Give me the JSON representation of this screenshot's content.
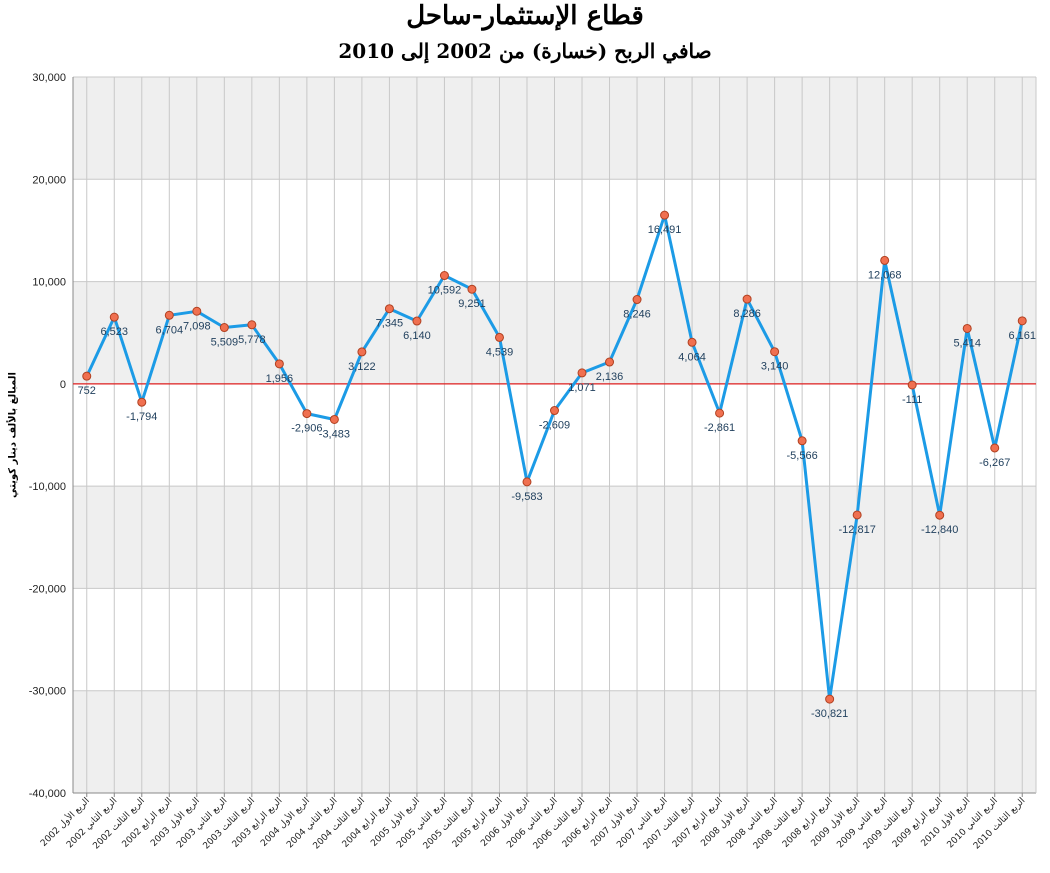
{
  "chart_data": {
    "type": "line",
    "title": "قطاع الإستثمار-ساحل",
    "subtitle": "صافي الربح (خسارة) من 2002 إلى 2010",
    "ylabel": "المبالغ بالألف دينار كويتي",
    "ylim": [
      -40000,
      30000
    ],
    "yticks": [
      "30,000",
      "20,000",
      "10,000",
      "0",
      "-10,000",
      "-20,000",
      "-30,000",
      "-40,000"
    ],
    "ytick_values": [
      30000,
      20000,
      10000,
      0,
      -10000,
      -20000,
      -30000,
      -40000
    ],
    "grid": true,
    "zero_line": true,
    "colors": {
      "line": "#1c9be6",
      "marker": "#f07050",
      "marker_edge": "#b04020",
      "zero_line": "#e02020",
      "band": "#efefef",
      "grid": "#c8c8c8",
      "label": "#23425f"
    },
    "categories": [
      "الربع الأول 2002",
      "الربع الثاني 2002",
      "الربع الثالث 2002",
      "الربع الرابع 2002",
      "الربع الأول 2003",
      "الربع الثاني 2003",
      "الربع الثالث 2003",
      "الربع الرابع 2003",
      "الربع الأول 2004",
      "الربع الثاني 2004",
      "الربع الثالث 2004",
      "الربع الرابع 2004",
      "الربع الأول 2005",
      "الربع الثاني 2005",
      "الربع الثالث 2005",
      "الربع الرابع 2005",
      "الربع الأول 2006",
      "الربع الثاني 2006",
      "الربع الثالث 2006",
      "الربع الرابع 2006",
      "الربع الأول 2007",
      "الربع الثاني 2007",
      "الربع الثالث 2007",
      "الربع الرابع 2007",
      "الربع الأول 2008",
      "الربع الثاني 2008",
      "الربع الثالث 2008",
      "الربع الرابع 2008",
      "الربع الأول 2009",
      "الربع الثاني 2009",
      "الربع الثالث 2009",
      "الربع الرابع 2009",
      "الربع الأول 2010",
      "الربع الثاني 2010",
      "الربع الثالث 2010"
    ],
    "values": [
      752,
      6523,
      -1794,
      6704,
      7098,
      5509,
      5778,
      1956,
      -2906,
      -3483,
      3122,
      7345,
      6140,
      10592,
      9251,
      4539,
      -9583,
      -2609,
      1071,
      2136,
      8246,
      16491,
      4064,
      -2861,
      8286,
      3140,
      -5566,
      -30821,
      -12817,
      12068,
      -111,
      -12840,
      5414,
      -6267,
      6161
    ],
    "data_labels": [
      "752",
      "6,523",
      "-1,794",
      "6,704",
      "7,098",
      "5,509",
      "5,778",
      "1,956",
      "-2,906",
      "-3,483",
      "3,122",
      "7,345",
      "6,140",
      "10,592",
      "9,251",
      "4,539",
      "-9,583",
      "-2,609",
      "1,071",
      "2,136",
      "8,246",
      "16,491",
      "4,064",
      "-2,861",
      "8,286",
      "3,140",
      "-5,566",
      "-30,821",
      "-12,817",
      "12,068",
      "-111",
      "-12,840",
      "5,414",
      "-6,267",
      "6,161"
    ]
  }
}
